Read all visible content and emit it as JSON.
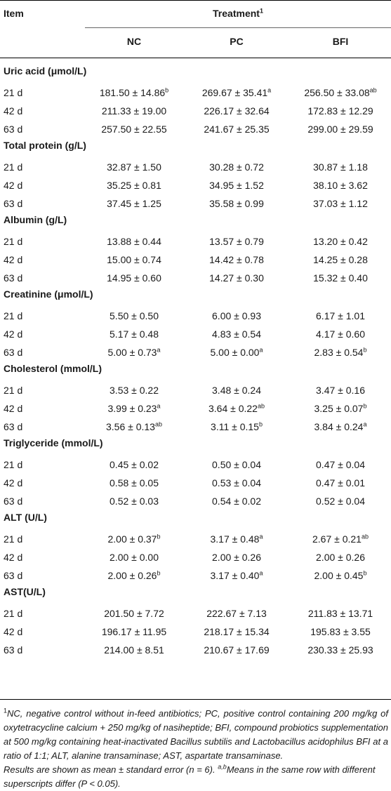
{
  "header": {
    "item": "Item",
    "treatment": "Treatment",
    "treatment_sup": "1",
    "cols": [
      "NC",
      "PC",
      "BFI"
    ]
  },
  "sections": [
    {
      "title": "Uric acid (μmol/L)",
      "rows": [
        {
          "label": "21 d",
          "cells": [
            [
              "181.50 ± 14.86",
              "b"
            ],
            [
              "269.67 ± 35.41",
              "a"
            ],
            [
              "256.50 ± 33.08",
              "ab"
            ]
          ]
        },
        {
          "label": "42 d",
          "cells": [
            [
              "211.33 ± 19.00",
              ""
            ],
            [
              "226.17 ± 32.64",
              ""
            ],
            [
              "172.83 ± 12.29",
              ""
            ]
          ]
        },
        {
          "label": "63 d",
          "cells": [
            [
              "257.50 ± 22.55",
              ""
            ],
            [
              "241.67 ± 25.35",
              ""
            ],
            [
              "299.00 ± 29.59",
              ""
            ]
          ]
        }
      ]
    },
    {
      "title": "Total protein (g/L)",
      "rows": [
        {
          "label": "21 d",
          "cells": [
            [
              "32.87 ± 1.50",
              ""
            ],
            [
              "30.28 ± 0.72",
              ""
            ],
            [
              "30.87 ± 1.18",
              ""
            ]
          ]
        },
        {
          "label": "42 d",
          "cells": [
            [
              "35.25 ± 0.81",
              ""
            ],
            [
              "34.95 ± 1.52",
              ""
            ],
            [
              "38.10 ± 3.62",
              ""
            ]
          ]
        },
        {
          "label": "63 d",
          "cells": [
            [
              "37.45 ± 1.25",
              ""
            ],
            [
              "35.58 ± 0.99",
              ""
            ],
            [
              "37.03 ± 1.12",
              ""
            ]
          ]
        }
      ]
    },
    {
      "title": "Albumin (g/L)",
      "rows": [
        {
          "label": "21 d",
          "cells": [
            [
              "13.88 ± 0.44",
              ""
            ],
            [
              "13.57 ± 0.79",
              ""
            ],
            [
              "13.20 ± 0.42",
              ""
            ]
          ]
        },
        {
          "label": "42 d",
          "cells": [
            [
              "15.00 ± 0.74",
              ""
            ],
            [
              "14.42 ± 0.78",
              ""
            ],
            [
              "14.25 ± 0.28",
              ""
            ]
          ]
        },
        {
          "label": "63 d",
          "cells": [
            [
              "14.95 ± 0.60",
              ""
            ],
            [
              "14.27 ± 0.30",
              ""
            ],
            [
              "15.32 ± 0.40",
              ""
            ]
          ]
        }
      ]
    },
    {
      "title": "Creatinine (μmol/L)",
      "rows": [
        {
          "label": "21 d",
          "cells": [
            [
              "5.50 ± 0.50",
              ""
            ],
            [
              "6.00 ± 0.93",
              ""
            ],
            [
              "6.17 ± 1.01",
              ""
            ]
          ]
        },
        {
          "label": "42 d",
          "cells": [
            [
              "5.17 ± 0.48",
              ""
            ],
            [
              "4.83 ± 0.54",
              ""
            ],
            [
              "4.17 ± 0.60",
              ""
            ]
          ]
        },
        {
          "label": "63 d",
          "cells": [
            [
              "5.00 ± 0.73",
              "a"
            ],
            [
              "5.00 ± 0.00",
              "a"
            ],
            [
              "2.83 ± 0.54",
              "b"
            ]
          ]
        }
      ]
    },
    {
      "title": "Cholesterol (mmol/L)",
      "rows": [
        {
          "label": "21 d",
          "cells": [
            [
              "3.53 ± 0.22",
              ""
            ],
            [
              "3.48 ± 0.24",
              ""
            ],
            [
              "3.47 ± 0.16",
              ""
            ]
          ]
        },
        {
          "label": "42 d",
          "cells": [
            [
              "3.99 ± 0.23",
              "a"
            ],
            [
              "3.64 ± 0.22",
              "ab"
            ],
            [
              "3.25 ± 0.07",
              "b"
            ]
          ]
        },
        {
          "label": "63 d",
          "cells": [
            [
              "3.56 ± 0.13",
              "ab"
            ],
            [
              "3.11 ± 0.15",
              "b"
            ],
            [
              "3.84 ± 0.24",
              "a"
            ]
          ]
        }
      ]
    },
    {
      "title": "Triglyceride (mmol/L)",
      "rows": [
        {
          "label": "21 d",
          "cells": [
            [
              "0.45 ± 0.02",
              ""
            ],
            [
              "0.50 ± 0.04",
              ""
            ],
            [
              "0.47 ± 0.04",
              ""
            ]
          ]
        },
        {
          "label": "42 d",
          "cells": [
            [
              "0.58 ± 0.05",
              ""
            ],
            [
              "0.53 ± 0.04",
              ""
            ],
            [
              "0.47 ± 0.01",
              ""
            ]
          ]
        },
        {
          "label": "63 d",
          "cells": [
            [
              "0.52 ± 0.03",
              ""
            ],
            [
              "0.54 ± 0.02",
              ""
            ],
            [
              "0.52 ± 0.04",
              ""
            ]
          ]
        }
      ]
    },
    {
      "title": "ALT (U/L)",
      "rows": [
        {
          "label": "21 d",
          "cells": [
            [
              "2.00 ± 0.37",
              "b"
            ],
            [
              "3.17 ± 0.48",
              "a"
            ],
            [
              "2.67 ± 0.21",
              "ab"
            ]
          ]
        },
        {
          "label": "42 d",
          "cells": [
            [
              "2.00 ± 0.00",
              ""
            ],
            [
              "2.00 ± 0.26",
              ""
            ],
            [
              "2.00 ± 0.26",
              ""
            ]
          ]
        },
        {
          "label": "63 d",
          "cells": [
            [
              "2.00 ± 0.26",
              "b"
            ],
            [
              "3.17 ± 0.40",
              "a"
            ],
            [
              "2.00 ± 0.45",
              "b"
            ]
          ]
        }
      ]
    },
    {
      "title": "AST(U/L)",
      "rows": [
        {
          "label": "21 d",
          "cells": [
            [
              "201.50 ± 7.72",
              ""
            ],
            [
              "222.67 ± 7.13",
              ""
            ],
            [
              "211.83 ± 13.71",
              ""
            ]
          ]
        },
        {
          "label": "42 d",
          "cells": [
            [
              "196.17 ± 11.95",
              ""
            ],
            [
              "218.17 ± 15.34",
              ""
            ],
            [
              "195.83 ± 3.55",
              ""
            ]
          ]
        },
        {
          "label": "63 d",
          "cells": [
            [
              "214.00 ± 8.51",
              ""
            ],
            [
              "210.67 ± 17.69",
              ""
            ],
            [
              "230.33 ± 25.93",
              ""
            ]
          ]
        }
      ]
    }
  ],
  "footnotes": {
    "note1_sup": "1",
    "note1": "NC, negative control without in-feed antibiotics; PC, positive control containing 200 mg/kg of oxytetracycline calcium + 250 mg/kg of nasiheptide; BFI, compound probiotics supplementation at 500 mg/kg containing heat-inactivated Bacillus subtilis and Lactobacillus acidophilus BFI at a ratio of 1:1; ALT, alanine transaminase; AST, aspartate transaminase.",
    "note2_a": "Results are shown as mean ± standard error (n = 6). ",
    "note2_sup": "a,b",
    "note2_b": "Means in the same row with different superscripts differ (P < 0.05)."
  }
}
